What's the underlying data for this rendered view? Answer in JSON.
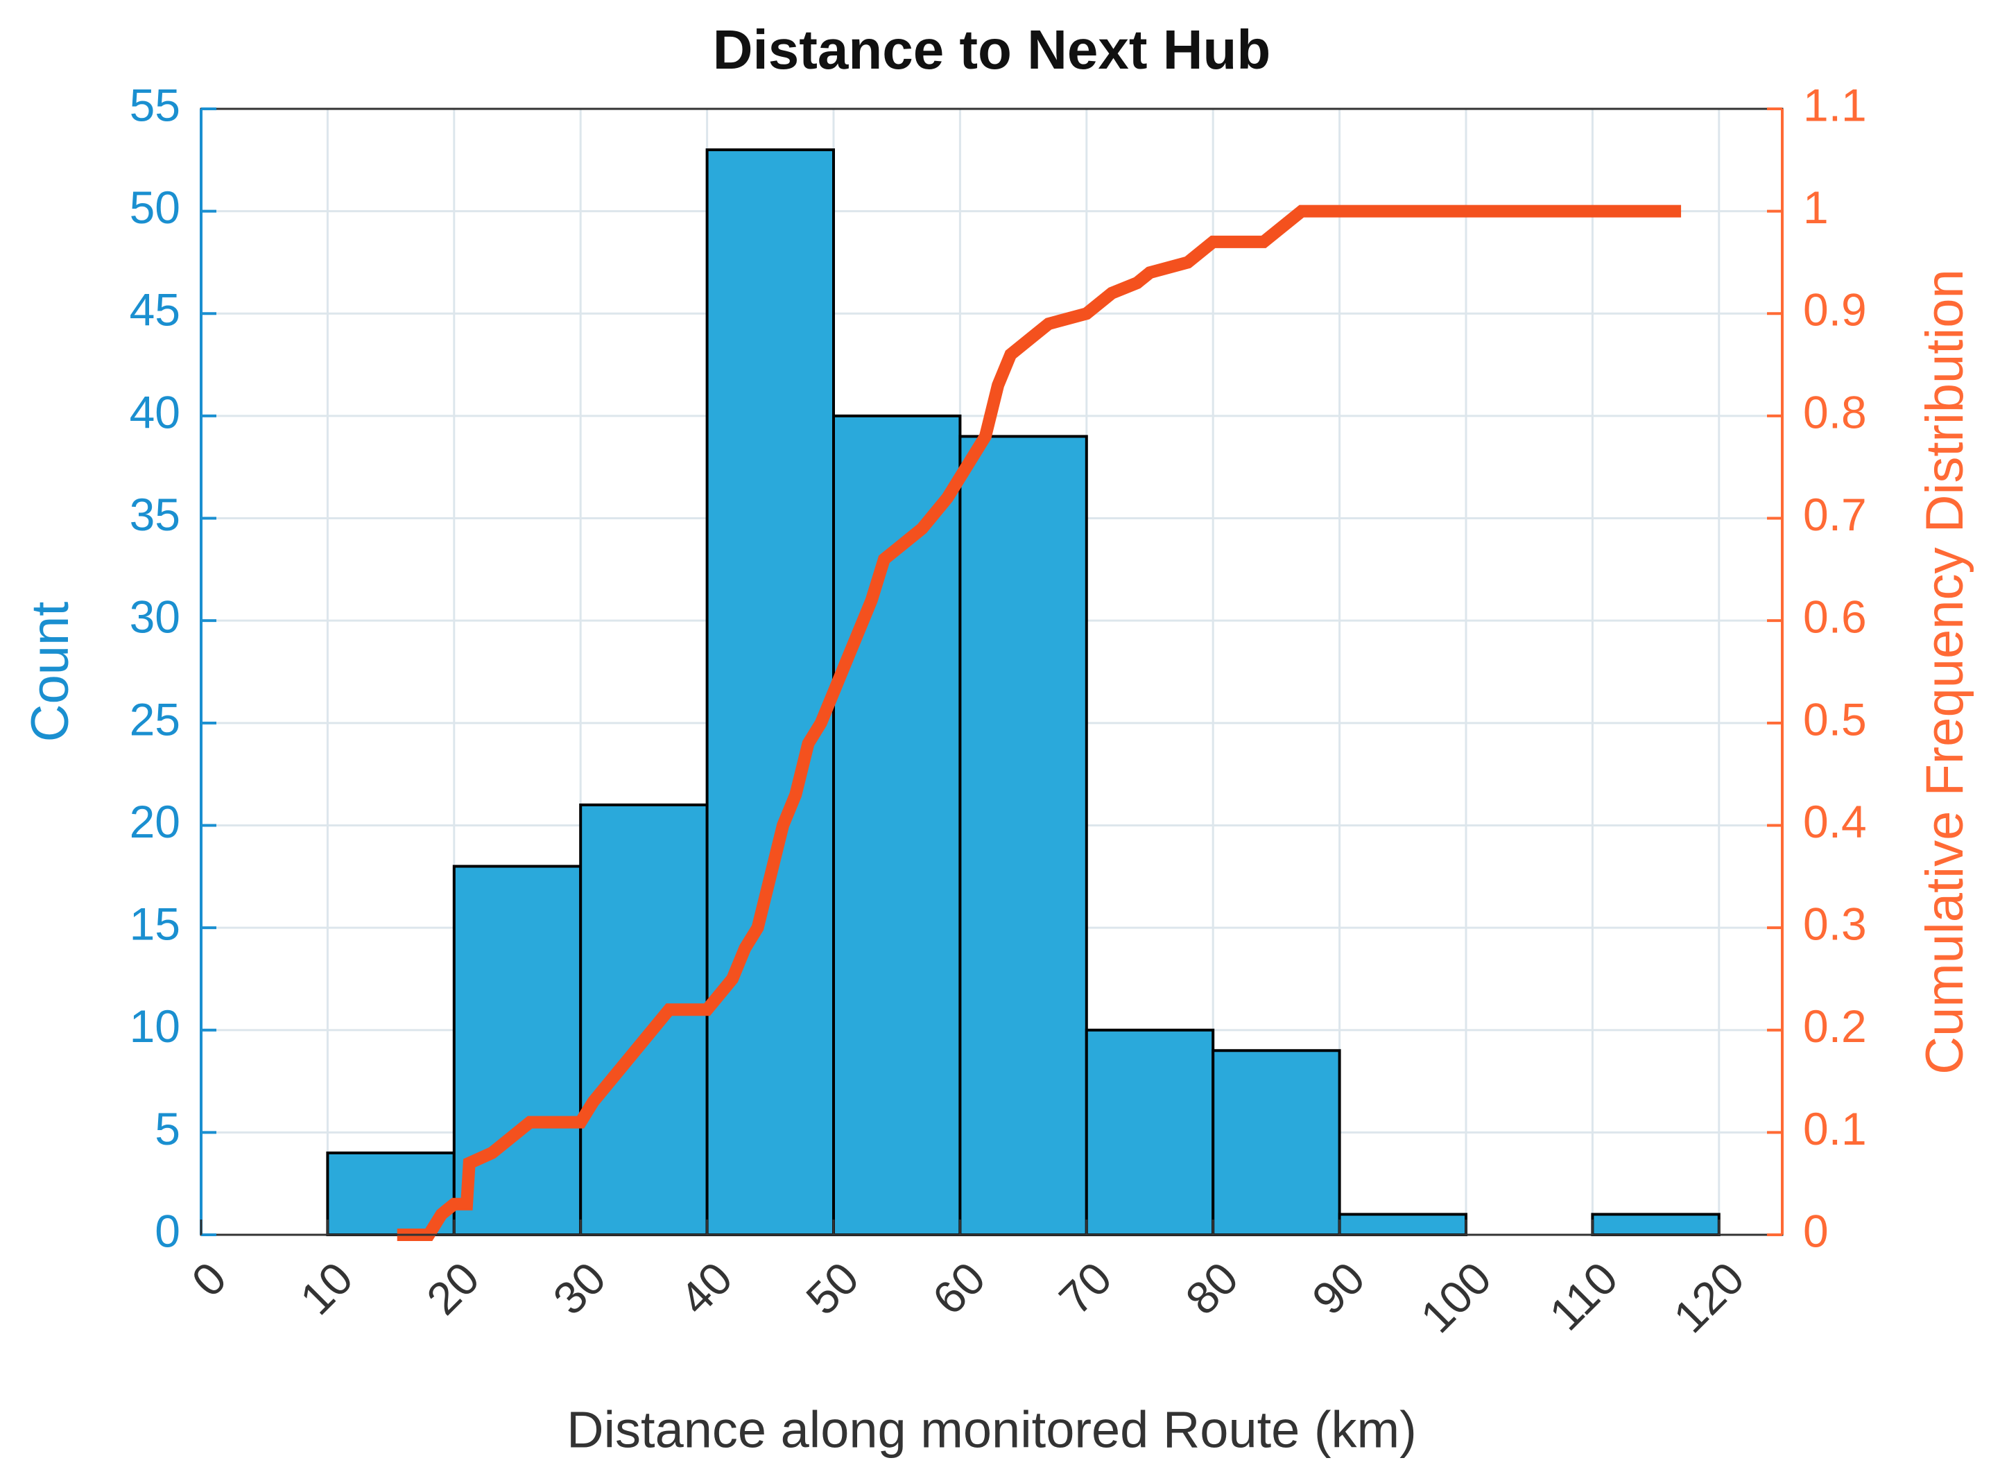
{
  "chart_data": {
    "type": "histogram",
    "title": "Distance to Next Hub",
    "xlabel": "Distance along monitored Route (km)",
    "ylabel": "Count",
    "y2label": "Cumulative Frequency Distribution",
    "bins": [
      10,
      20,
      30,
      40,
      50,
      60,
      70,
      80,
      90,
      100,
      110,
      120
    ],
    "values": [
      4,
      18,
      21,
      53,
      40,
      39,
      10,
      9,
      1,
      0,
      1
    ],
    "color": "#2aa9db",
    "edge_color": "#000000",
    "y_axis_color": "#1a8fd0",
    "y2_axis_color": "#ff6a35",
    "cdf": {
      "type": "line",
      "axis": "y2",
      "color": "#f4511e",
      "x": [
        15.5,
        18,
        19,
        20,
        21,
        21.2,
        23,
        25,
        26,
        30,
        31,
        33,
        35,
        37,
        40,
        42,
        43,
        44,
        45,
        46,
        47,
        48,
        49,
        50,
        51,
        52,
        53,
        54,
        55,
        57,
        59,
        60,
        62,
        63,
        64,
        66,
        67,
        70,
        72,
        74,
        75,
        78,
        80,
        84,
        85,
        86,
        87,
        117
      ],
      "values": [
        0,
        0,
        0.02,
        0.03,
        0.03,
        0.07,
        0.08,
        0.1,
        0.11,
        0.11,
        0.13,
        0.16,
        0.19,
        0.22,
        0.22,
        0.25,
        0.28,
        0.3,
        0.35,
        0.4,
        0.43,
        0.48,
        0.5,
        0.53,
        0.56,
        0.59,
        0.62,
        0.66,
        0.67,
        0.69,
        0.72,
        0.74,
        0.78,
        0.83,
        0.86,
        0.88,
        0.89,
        0.9,
        0.92,
        0.93,
        0.94,
        0.95,
        0.97,
        0.97,
        0.98,
        0.99,
        1,
        1
      ]
    },
    "xlim": [
      0,
      125
    ],
    "xticks": [
      0,
      10,
      20,
      30,
      40,
      50,
      60,
      70,
      80,
      90,
      100,
      110,
      120
    ],
    "ylim": [
      0,
      55
    ],
    "yticks": [
      0,
      5,
      10,
      15,
      20,
      25,
      30,
      35,
      40,
      45,
      50,
      55
    ],
    "y2lim": [
      0,
      1.1
    ],
    "y2ticks": [
      0,
      0.1,
      0.2,
      0.3,
      0.4,
      0.5,
      0.6,
      0.7,
      0.8,
      0.9,
      1,
      1.1
    ],
    "grid": true
  }
}
